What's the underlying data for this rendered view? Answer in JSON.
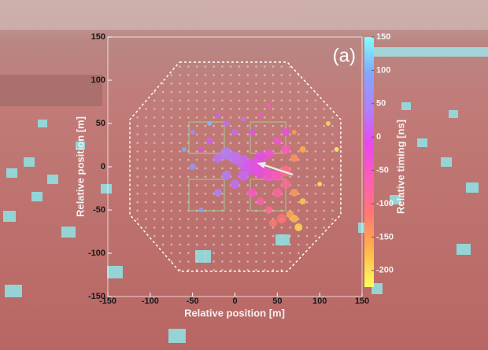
{
  "chart_data": {
    "type": "scatter",
    "xlabel": "Relative position [m]",
    "ylabel": "Relative position [m]",
    "colorbar_label": "Relative timing [ns]",
    "panel_label": "(a)",
    "xlim": [
      -150,
      150
    ],
    "ylim": [
      -150,
      150
    ],
    "xticks": [
      -150,
      -100,
      -50,
      0,
      50,
      100,
      150
    ],
    "yticks": [
      -150,
      -100,
      -50,
      0,
      50,
      100,
      150
    ],
    "clim": [
      -225,
      150
    ],
    "cticks": [
      -200,
      -150,
      -100,
      -50,
      0,
      50,
      100,
      150
    ],
    "colormap": [
      "#ffff60",
      "#ffb848",
      "#ff7a70",
      "#ff5cb8",
      "#e848f0",
      "#b080ff",
      "#80a8ff",
      "#80ffff"
    ],
    "series": [
      {
        "x": [
          -20,
          -10,
          0,
          10,
          20,
          -30,
          -40,
          -20,
          -10,
          0,
          10,
          20,
          30,
          40,
          50,
          30,
          40,
          10,
          0,
          -10,
          -20,
          20,
          30,
          40,
          50,
          60,
          60,
          60,
          50,
          60,
          70,
          70,
          70,
          75,
          65,
          55,
          45,
          -50,
          -60,
          -40,
          -30,
          80,
          80,
          70,
          110,
          120,
          100,
          -50,
          30,
          40
        ],
        "values": [
          60,
          50,
          40,
          55,
          40,
          30,
          20,
          10,
          15,
          10,
          5,
          0,
          -5,
          -10,
          -10,
          10,
          15,
          -10,
          -20,
          -10,
          -30,
          -30,
          -40,
          -50,
          -30,
          -20,
          -5,
          20,
          30,
          40,
          10,
          -30,
          -60,
          -70,
          -55,
          -60,
          -65,
          0,
          20,
          -50,
          50,
          -40,
          20,
          40,
          50,
          20,
          -20,
          40,
          60,
          70
        ],
        "sizes": [
          3,
          4,
          4,
          3,
          4,
          4,
          3,
          6,
          8,
          8,
          9,
          10,
          9,
          8,
          7,
          8,
          6,
          7,
          6,
          6,
          5,
          6,
          5,
          5,
          6,
          6,
          7,
          6,
          5,
          5,
          5,
          5,
          5,
          5,
          5,
          6,
          5,
          4,
          3,
          3,
          3,
          4,
          4,
          3,
          3,
          3,
          3,
          3,
          3,
          3
        ],
        "timing": [
          10,
          20,
          20,
          30,
          0,
          10,
          -10,
          30,
          40,
          30,
          20,
          0,
          -20,
          -40,
          -60,
          -10,
          -30,
          20,
          30,
          40,
          50,
          -50,
          -70,
          -90,
          -80,
          -90,
          -100,
          -60,
          -40,
          -20,
          -140,
          -150,
          -180,
          -200,
          -160,
          -110,
          -120,
          80,
          100,
          90,
          110,
          -190,
          -170,
          -150,
          -200,
          -220,
          -210,
          60,
          -40,
          -60
        ]
      }
    ]
  }
}
